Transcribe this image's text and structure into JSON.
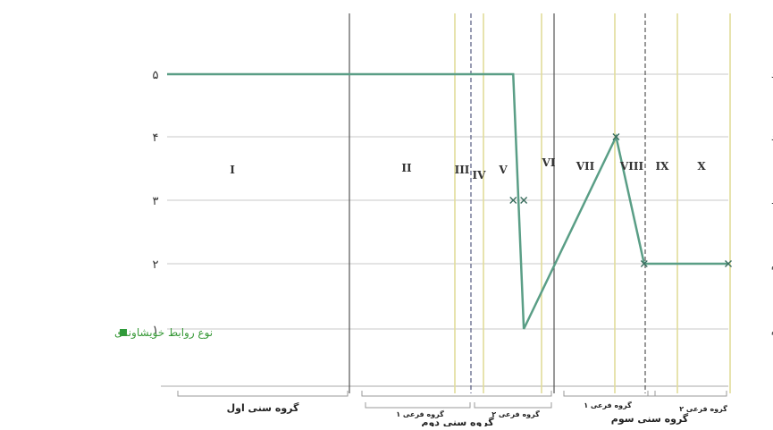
{
  "chart_data": {
    "type": "line",
    "ylim": [
      0,
      5.5
    ],
    "yticks": [
      {
        "value": 5,
        "number": "۵",
        "word": "بسیار زیاد"
      },
      {
        "value": 4,
        "number": "۴",
        "word": "زیاد"
      },
      {
        "value": 3,
        "number": "۳",
        "word": "متوسط"
      },
      {
        "value": 2,
        "number": "۲",
        "word": "کم"
      },
      {
        "value": 1,
        "number": "۱",
        "word": "بسیار کم"
      }
    ],
    "grid": true,
    "regions": [
      "I",
      "II",
      "III",
      "IV",
      "V",
      "VI",
      "VII",
      "VIII",
      "IX",
      "X"
    ],
    "groups": [
      {
        "label": "گروه سنی اول",
        "subgroups": []
      },
      {
        "label": "گروه سنی دوم",
        "subgroups": [
          "گروه فرعی ۱",
          "گروه فرعی ۲"
        ]
      },
      {
        "label": "گروه سنی سوم",
        "subgroups": [
          "گروه فرعی ۱",
          "گروه فرعی ۲"
        ]
      }
    ],
    "series": [
      {
        "name": "نوع روابط خویشاوندی",
        "color": "#5a9e86",
        "points": [
          {
            "x": 0,
            "y": 5
          },
          {
            "x": 5.55,
            "y": 5
          },
          {
            "x": 5.72,
            "y": 1
          },
          {
            "x": 7.2,
            "y": 4
          },
          {
            "x": 7.65,
            "y": 2
          },
          {
            "x": 9.0,
            "y": 2
          }
        ],
        "markers": [
          {
            "x": 5.55,
            "y": 3
          },
          {
            "x": 5.72,
            "y": 3
          },
          {
            "x": 7.2,
            "y": 4
          },
          {
            "x": 7.65,
            "y": 2
          },
          {
            "x": 9.0,
            "y": 2
          }
        ]
      }
    ],
    "legend": "left",
    "marker_color": "#3b6e5f",
    "legend_color": "#2e9a3a"
  }
}
